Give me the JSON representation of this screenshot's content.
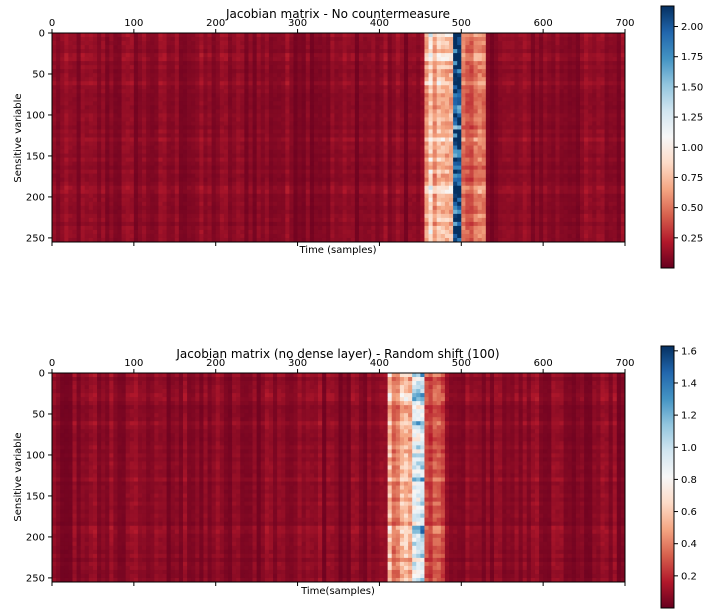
{
  "chart_data": [
    {
      "type": "heatmap",
      "title": "Jacobian matrix - No countermeasure",
      "xlabel": "Time (samples)",
      "ylabel": "Sensitive variable",
      "xlim": [
        0,
        700
      ],
      "ylim": [
        255,
        0
      ],
      "x_ticks": [
        "0",
        "100",
        "200",
        "300",
        "400",
        "500",
        "600",
        "700"
      ],
      "x_tick_values": [
        0,
        100,
        200,
        300,
        400,
        500,
        600,
        700
      ],
      "y_ticks": [
        "0",
        "50",
        "100",
        "150",
        "200",
        "250"
      ],
      "y_tick_values": [
        0,
        50,
        100,
        150,
        200,
        250
      ],
      "x_tick_position": "top",
      "colormap": "RdBu",
      "colorbar": {
        "range": [
          0,
          2.17
        ],
        "ticks": [
          "0.25",
          "0.50",
          "0.75",
          "1.00",
          "1.25",
          "1.50",
          "1.75",
          "2.00"
        ],
        "tick_values": [
          0.25,
          0.5,
          0.75,
          1.0,
          1.25,
          1.5,
          1.75,
          2.0
        ]
      },
      "hot_columns": [
        {
          "x_range": [
            455,
            480
          ],
          "level": 0.75
        },
        {
          "x_range": [
            481,
            495
          ],
          "level": 1.0
        },
        {
          "x_range": [
            488,
            500
          ],
          "level": 1.85
        },
        {
          "x_range": [
            500,
            530
          ],
          "level": 0.45
        }
      ],
      "hot_rows": [
        0,
        30,
        62,
        130,
        190
      ],
      "background_level": 0.08
    },
    {
      "type": "heatmap",
      "title": "Jacobian matrix (no dense layer) - Random shift (100)",
      "xlabel": "Time(samples)",
      "ylabel": "Sensitive variable",
      "xlim": [
        0,
        700
      ],
      "ylim": [
        255,
        0
      ],
      "x_ticks": [
        "0",
        "100",
        "200",
        "300",
        "400",
        "500",
        "600",
        "700"
      ],
      "x_tick_values": [
        0,
        100,
        200,
        300,
        400,
        500,
        600,
        700
      ],
      "y_ticks": [
        "0",
        "50",
        "100",
        "150",
        "200",
        "250"
      ],
      "y_tick_values": [
        0,
        50,
        100,
        150,
        200,
        250
      ],
      "x_tick_position": "top",
      "colormap": "RdBu",
      "colorbar": {
        "range": [
          0,
          1.63
        ],
        "ticks": [
          "0.2",
          "0.4",
          "0.6",
          "0.8",
          "1.0",
          "1.2",
          "1.4",
          "1.6"
        ],
        "tick_values": [
          0.2,
          0.4,
          0.6,
          0.8,
          1.0,
          1.2,
          1.4,
          1.6
        ]
      },
      "hot_columns": [
        {
          "x_range": [
            410,
            440
          ],
          "level": 0.7
        },
        {
          "x_range": [
            440,
            455
          ],
          "level": 1.0
        },
        {
          "x_range": [
            444,
            456
          ],
          "level": 1.45
        },
        {
          "x_range": [
            455,
            480
          ],
          "level": 0.35
        }
      ],
      "hot_rows": [
        0,
        30,
        62,
        130,
        190
      ],
      "background_level": 0.08
    }
  ]
}
